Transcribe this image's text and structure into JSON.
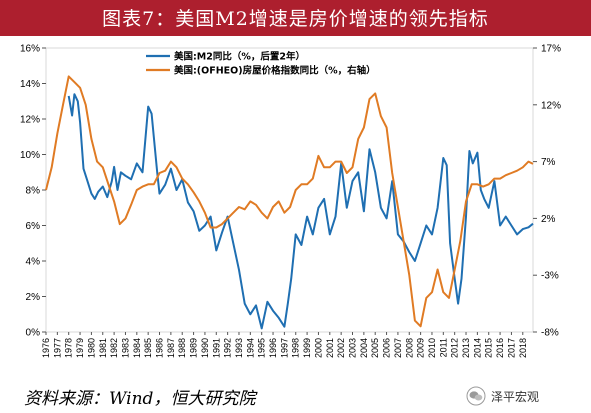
{
  "title": "图表7：美国M2增速是房价增速的领先指标",
  "source": "资料来源：Wind，恒大研究院",
  "watermark": "泽平宏观",
  "colors": {
    "title_bg": "#ad1f2e",
    "m2": "#1f6fb2",
    "hpi": "#e07b24"
  },
  "chart_data": {
    "type": "line",
    "x_range": [
      1976,
      2018.9
    ],
    "x_ticks": [
      "1976",
      "1977",
      "1978",
      "1979",
      "1980",
      "1981",
      "1982",
      "1983",
      "1984",
      "1985",
      "1986",
      "1987",
      "1988",
      "1989",
      "1990",
      "1991",
      "1992",
      "1993",
      "1994",
      "1995",
      "1996",
      "1997",
      "1998",
      "1999",
      "2000",
      "2001",
      "2002",
      "2003",
      "2004",
      "2005",
      "2006",
      "2007",
      "2008",
      "2009",
      "2010",
      "2011",
      "2012",
      "2013",
      "2014",
      "2015",
      "2016",
      "2017",
      "2018"
    ],
    "y_left": {
      "min": 0,
      "max": 16,
      "ticks": [
        "0%",
        "2%",
        "4%",
        "6%",
        "8%",
        "10%",
        "12%",
        "14%",
        "16%"
      ]
    },
    "y_right": {
      "min": -8,
      "max": 17,
      "ticks": [
        "-8%",
        "-3%",
        "2%",
        "7%",
        "12%",
        "17%"
      ]
    },
    "series": [
      {
        "name": "美国:M2同比（%，后置2年）",
        "axis": "left",
        "x": [
          1978.0,
          1978.3,
          1978.5,
          1978.8,
          1979.0,
          1979.3,
          1979.6,
          1980.0,
          1980.3,
          1980.6,
          1981.0,
          1981.4,
          1981.8,
          1982.0,
          1982.3,
          1982.6,
          1983.0,
          1983.5,
          1984.0,
          1984.5,
          1985.0,
          1985.3,
          1985.5,
          1985.8,
          1986.0,
          1986.5,
          1987.0,
          1987.5,
          1988.0,
          1988.5,
          1989.0,
          1989.5,
          1990.0,
          1990.5,
          1991.0,
          1991.5,
          1992.0,
          1992.5,
          1993.0,
          1993.5,
          1994.0,
          1994.5,
          1995.0,
          1995.5,
          1996.0,
          1996.5,
          1997.0,
          1997.3,
          1997.6,
          1998.0,
          1998.5,
          1999.0,
          1999.5,
          2000.0,
          2000.5,
          2001.0,
          2001.5,
          2002.0,
          2002.5,
          2003.0,
          2003.5,
          2004.0,
          2004.5,
          2005.0,
          2005.5,
          2006.0,
          2006.5,
          2007.0,
          2007.5,
          2008.0,
          2008.5,
          2009.0,
          2009.5,
          2010.0,
          2010.5,
          2011.0,
          2011.3,
          2011.6,
          2012.0,
          2012.3,
          2012.6,
          2013.0,
          2013.3,
          2013.6,
          2014.0,
          2014.3,
          2014.6,
          2015.0,
          2015.5,
          2016.0,
          2016.5,
          2017.0,
          2017.5,
          2018.0,
          2018.5,
          2018.9
        ],
        "values": [
          13.3,
          12.2,
          13.4,
          13.0,
          11.8,
          9.2,
          8.6,
          7.8,
          7.5,
          7.9,
          8.2,
          7.6,
          8.5,
          9.3,
          8.0,
          9.0,
          8.8,
          8.6,
          9.5,
          9.0,
          12.7,
          12.3,
          11.0,
          9.0,
          7.8,
          8.3,
          9.2,
          8.0,
          8.6,
          7.3,
          6.8,
          5.7,
          6.0,
          6.5,
          4.6,
          5.6,
          6.5,
          5.0,
          3.5,
          1.6,
          1.0,
          1.5,
          0.2,
          1.7,
          1.2,
          0.8,
          0.3,
          1.6,
          3.0,
          5.5,
          4.9,
          6.5,
          5.5,
          7.0,
          7.5,
          5.5,
          6.5,
          9.5,
          7.0,
          8.5,
          9.0,
          6.8,
          10.3,
          9.0,
          7.0,
          6.4,
          8.5,
          5.5,
          5.1,
          4.5,
          4.0,
          5.0,
          6.0,
          5.5,
          7.0,
          9.8,
          9.4,
          5.0,
          3.0,
          1.6,
          3.0,
          6.5,
          10.2,
          9.5,
          10.1,
          8.0,
          7.5,
          7.0,
          8.5,
          6.0,
          6.5,
          6.0,
          5.5,
          5.8,
          5.9,
          6.1
        ]
      },
      {
        "name": "美国:(OFHEO)房屋价格指数同比（%，右轴）",
        "axis": "right",
        "x": [
          1976.0,
          1976.5,
          1977.0,
          1977.5,
          1978.0,
          1978.5,
          1979.0,
          1979.5,
          1980.0,
          1980.5,
          1981.0,
          1981.5,
          1982.0,
          1982.5,
          1983.0,
          1983.5,
          1984.0,
          1984.5,
          1985.0,
          1985.5,
          1986.0,
          1986.5,
          1987.0,
          1987.5,
          1988.0,
          1988.5,
          1989.0,
          1989.5,
          1990.0,
          1990.5,
          1991.0,
          1991.5,
          1992.0,
          1992.5,
          1993.0,
          1993.5,
          1994.0,
          1994.5,
          1995.0,
          1995.5,
          1996.0,
          1996.5,
          1997.0,
          1997.5,
          1998.0,
          1998.5,
          1999.0,
          1999.5,
          2000.0,
          2000.5,
          2001.0,
          2001.5,
          2002.0,
          2002.5,
          2003.0,
          2003.5,
          2004.0,
          2004.5,
          2005.0,
          2005.5,
          2006.0,
          2006.5,
          2007.0,
          2007.5,
          2008.0,
          2008.5,
          2009.0,
          2009.5,
          2010.0,
          2010.5,
          2011.0,
          2011.5,
          2012.0,
          2012.5,
          2013.0,
          2013.5,
          2014.0,
          2014.5,
          2015.0,
          2015.5,
          2016.0,
          2016.5,
          2017.0,
          2017.5,
          2018.0,
          2018.5,
          2018.9
        ],
        "values": [
          4.5,
          6.5,
          9.5,
          12.0,
          14.5,
          14.0,
          13.5,
          12.0,
          9.0,
          7.0,
          6.5,
          5.0,
          3.5,
          1.5,
          2.0,
          3.2,
          4.5,
          4.8,
          5.0,
          5.0,
          6.0,
          6.2,
          7.0,
          6.5,
          5.5,
          5.0,
          4.3,
          3.5,
          2.5,
          1.2,
          1.2,
          1.5,
          2.0,
          2.5,
          3.0,
          2.8,
          3.5,
          3.2,
          2.5,
          2.0,
          3.0,
          3.5,
          2.5,
          3.0,
          4.5,
          5.0,
          5.0,
          5.5,
          7.5,
          6.5,
          6.5,
          7.0,
          7.0,
          6.0,
          6.5,
          9.0,
          10.0,
          12.5,
          13.0,
          11.0,
          10.0,
          6.0,
          3.0,
          0.0,
          -3.0,
          -7.0,
          -7.5,
          -5.0,
          -4.5,
          -2.5,
          -4.5,
          -5.0,
          -2.5,
          0.0,
          3.5,
          5.0,
          5.0,
          4.8,
          5.0,
          5.5,
          5.5,
          5.8,
          6.0,
          6.2,
          6.5,
          7.0,
          6.8
        ]
      }
    ],
    "legend_position": "top-left",
    "grid": false
  }
}
